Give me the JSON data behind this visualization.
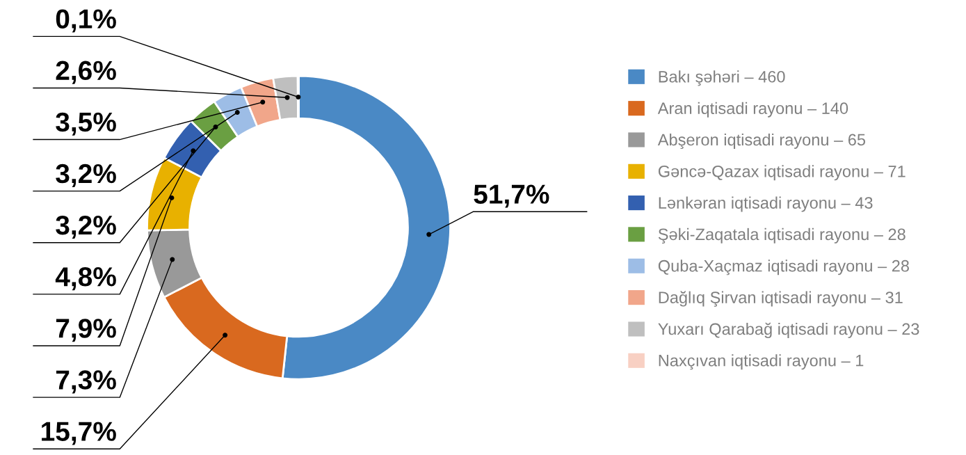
{
  "chart_data": {
    "type": "donut",
    "categories": [
      "Bakı şəhəri – 460",
      "Aran iqtisadi rayonu – 140",
      "Abşeron iqtisadi rayonu – 65",
      "Gəncə-Qazax iqtisadi rayonu – 71",
      "Lənkəran iqtisadi rayonu – 43",
      "Şəki-Zaqatala iqtisadi rayonu – 28",
      "Quba-Xaçmaz iqtisadi rayonu – 28",
      "Dağlıq Şirvan iqtisadi rayonu – 31",
      "Yuxarı Qarabağ iqtisadi rayonu – 23",
      "Naxçıvan iqtisadi rayonu – 1"
    ],
    "values": [
      51.7,
      15.7,
      7.3,
      7.9,
      4.8,
      3.2,
      3.2,
      3.5,
      2.6,
      0.1
    ],
    "value_labels": [
      "51,7%",
      "15,7%",
      "7,3%",
      "7,9%",
      "4,8%",
      "3,2%",
      "3,2%",
      "3,5%",
      "2,6%",
      "0,1%"
    ],
    "colors": [
      "#4a89c5",
      "#d9691f",
      "#999999",
      "#e8b100",
      "#3360b0",
      "#6a9f42",
      "#9dbde6",
      "#f1a68a",
      "#bfbfbf",
      "#f8d0c3"
    ],
    "legend": "right"
  }
}
